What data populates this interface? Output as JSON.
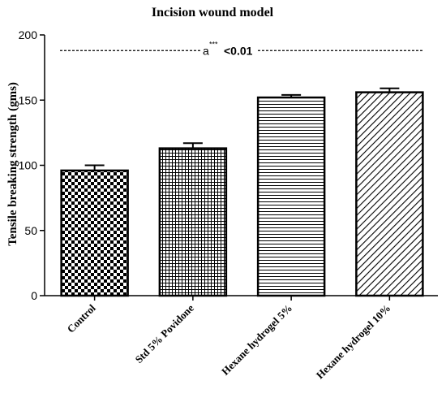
{
  "chart_data": {
    "type": "bar",
    "title": "Incision wound model",
    "xlabel": "",
    "ylabel": "Tensile breaking strength (gms)",
    "ylim": [
      0,
      200
    ],
    "yticks": [
      0,
      50,
      100,
      150,
      200
    ],
    "categories": [
      "Control",
      "Std 5% Povidone",
      "Hexane hydrogel 5%",
      "Hexane hydrogel 10%"
    ],
    "values": [
      96,
      113,
      152,
      156
    ],
    "errors": [
      4,
      4,
      2,
      3
    ],
    "patterns": [
      "checkerboard",
      "grid",
      "horizontal-lines",
      "diagonal-lines"
    ],
    "annotation": {
      "letter": "a",
      "stars": "***",
      "text": "<0.01",
      "y": 188
    },
    "grid": false,
    "legend": "none"
  }
}
